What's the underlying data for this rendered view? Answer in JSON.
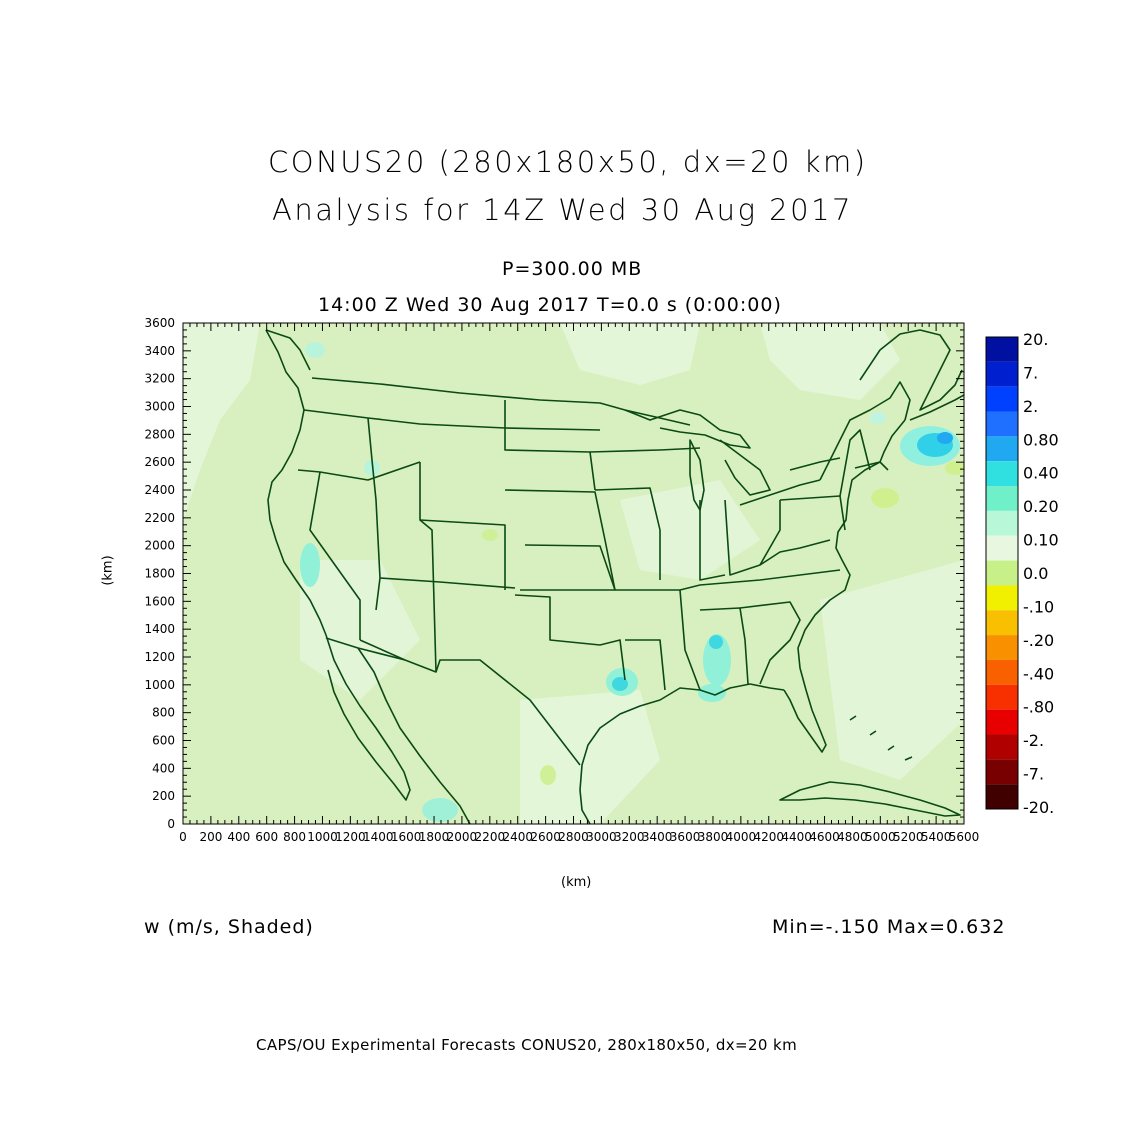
{
  "header": {
    "title_line1": "CONUS20 (280x180x50, dx=20 km)",
    "title_line2": "Analysis for 14Z Wed 30 Aug 2017",
    "level": "P=300.00 MB",
    "time": "14:00 Z Wed 30 Aug 2017    T=0.0 s (0:00:00)"
  },
  "axes": {
    "y_label": "(km)",
    "x_label": "(km)",
    "y_ticks": [
      "0",
      "200",
      "400",
      "600",
      "800",
      "1000",
      "1200",
      "1400",
      "1600",
      "1800",
      "2000",
      "2200",
      "2400",
      "2600",
      "2800",
      "3000",
      "3200",
      "3400",
      "3600"
    ],
    "x_ticks": [
      "0",
      "200",
      "400",
      "600",
      "800",
      "1000",
      "1200",
      "1400",
      "1600",
      "1800",
      "2000",
      "2200",
      "2400",
      "2600",
      "2800",
      "3000",
      "3200",
      "3400",
      "3600",
      "3800",
      "4000",
      "4200",
      "4400",
      "4600",
      "4800",
      "5000",
      "5200",
      "5400",
      "5600"
    ]
  },
  "colorbar": {
    "labels": [
      "20.",
      "7.",
      "2.",
      "0.80",
      "0.40",
      "0.20",
      "0.10",
      "0.0",
      "-.10",
      "-.20",
      "-.40",
      "-.80",
      "-2.",
      "-7.",
      "-20."
    ],
    "colors": [
      "#0010a0",
      "#0020d0",
      "#0040ff",
      "#2070ff",
      "#20a8f0",
      "#30e0e0",
      "#70f0c8",
      "#b8f8d8",
      "#e8f8e0",
      "#c8f088",
      "#f0f000",
      "#f8c000",
      "#f89000",
      "#f86000",
      "#f83000",
      "#e80000",
      "#b00000",
      "#780000",
      "#400000"
    ]
  },
  "variable": {
    "label": "w (m/s, Shaded)",
    "minmax": "Min=-.150  Max=0.632"
  },
  "footer": {
    "text": "CAPS/OU Experimental Forecasts  CONUS20, 280x180x50, dx=20 km"
  },
  "map": {
    "background_color": "#d8f0c0",
    "boundary_color": "#0a4a14"
  }
}
